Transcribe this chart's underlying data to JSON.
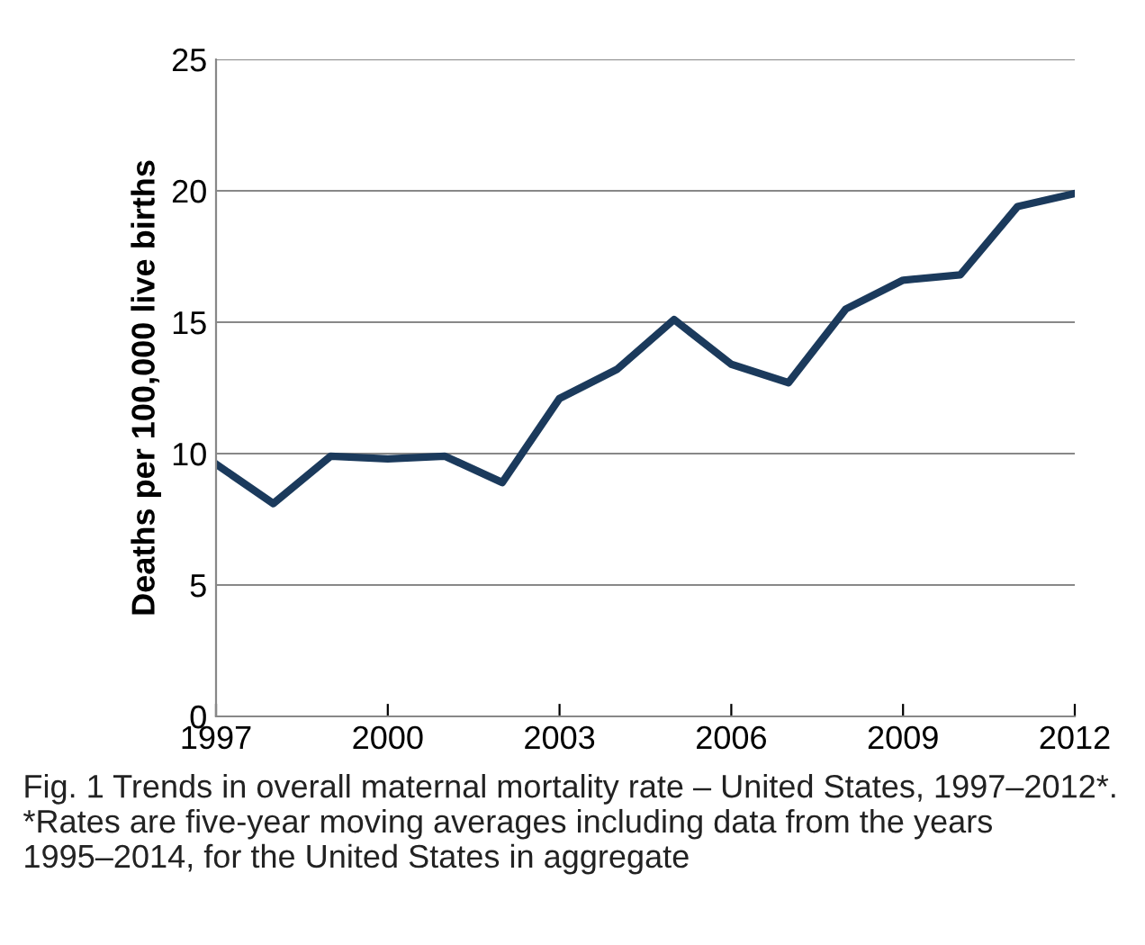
{
  "chart_data": {
    "type": "line",
    "ylabel": "Deaths per 100,000 live births",
    "x": [
      1997,
      1998,
      1999,
      2000,
      2001,
      2002,
      2003,
      2004,
      2005,
      2006,
      2007,
      2008,
      2009,
      2010,
      2011,
      2012
    ],
    "series": [
      {
        "color": "#1b3a5c",
        "values": [
          9.6,
          8.1,
          9.9,
          9.8,
          9.9,
          8.9,
          12.1,
          13.2,
          15.1,
          13.4,
          12.7,
          15.5,
          16.6,
          16.8,
          19.4,
          19.9
        ]
      }
    ],
    "xlim": [
      1997,
      2012
    ],
    "xticks": [
      1997,
      2000,
      2003,
      2006,
      2009,
      2012
    ],
    "ylim": [
      0,
      25
    ],
    "yticks": [
      0,
      5,
      10,
      15,
      20,
      25
    ],
    "grid": "y",
    "marker": "none",
    "line_style": "solid",
    "annotations": [
      "Fig. 1 Trends in overall maternal mortality rate – United States, 1997–2012*. *Rates are five-year moving averages including data from the years 1995–2014, for the United States in aggregate"
    ]
  }
}
